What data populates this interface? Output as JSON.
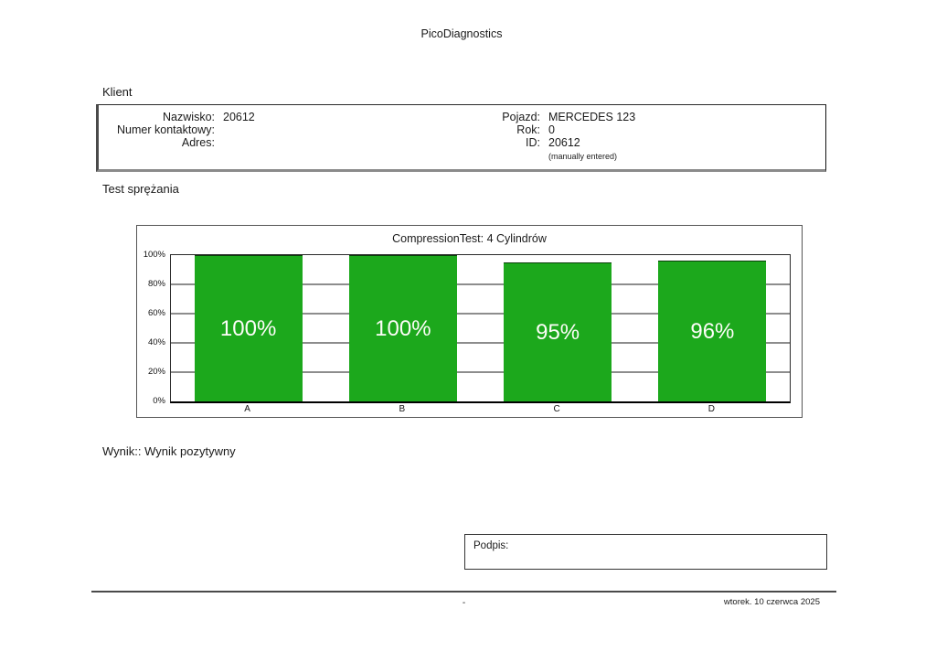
{
  "page": {
    "title": "PicoDiagnostics",
    "footer": {
      "center": "-",
      "date": "wtorek. 10 czerwca 2025"
    }
  },
  "client": {
    "section_label": "Klient",
    "fields_left": [
      {
        "label": "Nazwisko:",
        "value": "20612"
      },
      {
        "label": "Numer kontaktowy:",
        "value": ""
      },
      {
        "label": "Adres:",
        "value": ""
      }
    ],
    "fields_right": [
      {
        "label": "Pojazd:",
        "value": "MERCEDES 123"
      },
      {
        "label": "Rok:",
        "value": "0"
      },
      {
        "label": "ID:",
        "value": "20612"
      }
    ],
    "note": "(manually entered)"
  },
  "test": {
    "section_label": "Test sprężania",
    "result_label": "Wynik:: Wynik pozytywny"
  },
  "signature": {
    "label": "Podpis:"
  },
  "chart_data": {
    "type": "bar",
    "title": "CompressionTest: 4 Cylindrów",
    "categories": [
      "A",
      "B",
      "C",
      "D"
    ],
    "values": [
      100,
      100,
      95,
      96
    ],
    "value_labels": [
      "100%",
      "100%",
      "95%",
      "96%"
    ],
    "y_ticks": [
      "100%",
      "80%",
      "60%",
      "40%",
      "20%",
      "0%"
    ],
    "ylim": [
      0,
      100
    ],
    "xlabel": "",
    "ylabel": "",
    "grid": true,
    "legend": false,
    "bar_color": "#1CA81C",
    "bar_label_color": "#FDFDF8",
    "grid_color": "#8D8D8D"
  }
}
